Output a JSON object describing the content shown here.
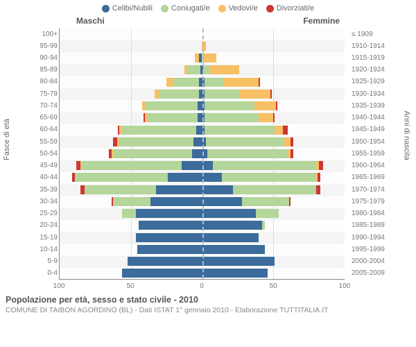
{
  "legend": {
    "items": [
      {
        "label": "Celibi/Nubili",
        "color": "#3b6c9c"
      },
      {
        "label": "Coniugati/e",
        "color": "#b4d69a"
      },
      {
        "label": "Vedovi/e",
        "color": "#f7c065"
      },
      {
        "label": "Divorziati/e",
        "color": "#cd3734"
      }
    ]
  },
  "section_titles": {
    "m": "Maschi",
    "f": "Femmine"
  },
  "axis_titles": {
    "left": "Fasce di età",
    "right": "Anni di nascita"
  },
  "chart": {
    "type": "population-pyramid-stacked",
    "x_max": 100,
    "x_ticks": [
      100,
      50,
      0,
      50,
      100
    ],
    "background_color": "#ffffff",
    "grid_color": "#dddddd",
    "rows": [
      {
        "age": "100+",
        "birth": "≤ 1909",
        "m": [
          0,
          0,
          0,
          0
        ],
        "f": [
          0,
          0,
          0,
          0
        ]
      },
      {
        "age": "95-99",
        "birth": "1910-1914",
        "m": [
          0,
          0,
          0,
          0
        ],
        "f": [
          0,
          0,
          3,
          0
        ]
      },
      {
        "age": "90-94",
        "birth": "1915-1919",
        "m": [
          2,
          0,
          3,
          0
        ],
        "f": [
          0,
          1,
          9,
          0
        ]
      },
      {
        "age": "85-89",
        "birth": "1920-1924",
        "m": [
          1,
          9,
          2,
          0
        ],
        "f": [
          1,
          5,
          20,
          0
        ]
      },
      {
        "age": "80-84",
        "birth": "1925-1929",
        "m": [
          2,
          18,
          5,
          0
        ],
        "f": [
          2,
          13,
          25,
          1
        ]
      },
      {
        "age": "75-79",
        "birth": "1930-1934",
        "m": [
          2,
          28,
          3,
          0
        ],
        "f": [
          2,
          24,
          22,
          1
        ]
      },
      {
        "age": "70-74",
        "birth": "1935-1939",
        "m": [
          3,
          37,
          2,
          0
        ],
        "f": [
          2,
          35,
          15,
          1
        ]
      },
      {
        "age": "65-69",
        "birth": "1940-1944",
        "m": [
          3,
          35,
          2,
          1
        ],
        "f": [
          2,
          38,
          10,
          1
        ]
      },
      {
        "age": "60-64",
        "birth": "1945-1949",
        "m": [
          4,
          52,
          2,
          1
        ],
        "f": [
          2,
          49,
          6,
          3
        ]
      },
      {
        "age": "55-59",
        "birth": "1950-1954",
        "m": [
          6,
          52,
          1,
          3
        ],
        "f": [
          3,
          55,
          4,
          2
        ]
      },
      {
        "age": "50-54",
        "birth": "1955-1959",
        "m": [
          7,
          55,
          1,
          2
        ],
        "f": [
          4,
          56,
          2,
          2
        ]
      },
      {
        "age": "45-49",
        "birth": "1960-1964",
        "m": [
          14,
          70,
          1,
          3
        ],
        "f": [
          8,
          72,
          2,
          3
        ]
      },
      {
        "age": "40-44",
        "birth": "1965-1969",
        "m": [
          24,
          65,
          0,
          2
        ],
        "f": [
          14,
          66,
          1,
          2
        ]
      },
      {
        "age": "35-39",
        "birth": "1970-1974",
        "m": [
          32,
          50,
          0,
          3
        ],
        "f": [
          22,
          58,
          0,
          3
        ]
      },
      {
        "age": "30-34",
        "birth": "1975-1979",
        "m": [
          36,
          26,
          0,
          1
        ],
        "f": [
          28,
          33,
          0,
          1
        ]
      },
      {
        "age": "25-29",
        "birth": "1980-1984",
        "m": [
          46,
          10,
          0,
          0
        ],
        "f": [
          38,
          16,
          0,
          0
        ]
      },
      {
        "age": "20-24",
        "birth": "1985-1989",
        "m": [
          44,
          0,
          0,
          0
        ],
        "f": [
          42,
          2,
          0,
          0
        ]
      },
      {
        "age": "15-19",
        "birth": "1990-1994",
        "m": [
          46,
          0,
          0,
          0
        ],
        "f": [
          40,
          0,
          0,
          0
        ]
      },
      {
        "age": "10-14",
        "birth": "1995-1999",
        "m": [
          45,
          0,
          0,
          0
        ],
        "f": [
          44,
          0,
          0,
          0
        ]
      },
      {
        "age": "5-9",
        "birth": "2000-2004",
        "m": [
          52,
          0,
          0,
          0
        ],
        "f": [
          51,
          0,
          0,
          0
        ]
      },
      {
        "age": "0-4",
        "birth": "2005-2009",
        "m": [
          56,
          0,
          0,
          0
        ],
        "f": [
          46,
          0,
          0,
          0
        ]
      }
    ],
    "series_colors": [
      "#3b6c9c",
      "#b4d69a",
      "#f7c065",
      "#cd3734"
    ]
  },
  "footer": {
    "title": "Popolazione per età, sesso e stato civile - 2010",
    "subtitle": "COMUNE DI TAIBON AGORDINO (BL) - Dati ISTAT 1° gennaio 2010 - Elaborazione TUTTITALIA.IT"
  }
}
